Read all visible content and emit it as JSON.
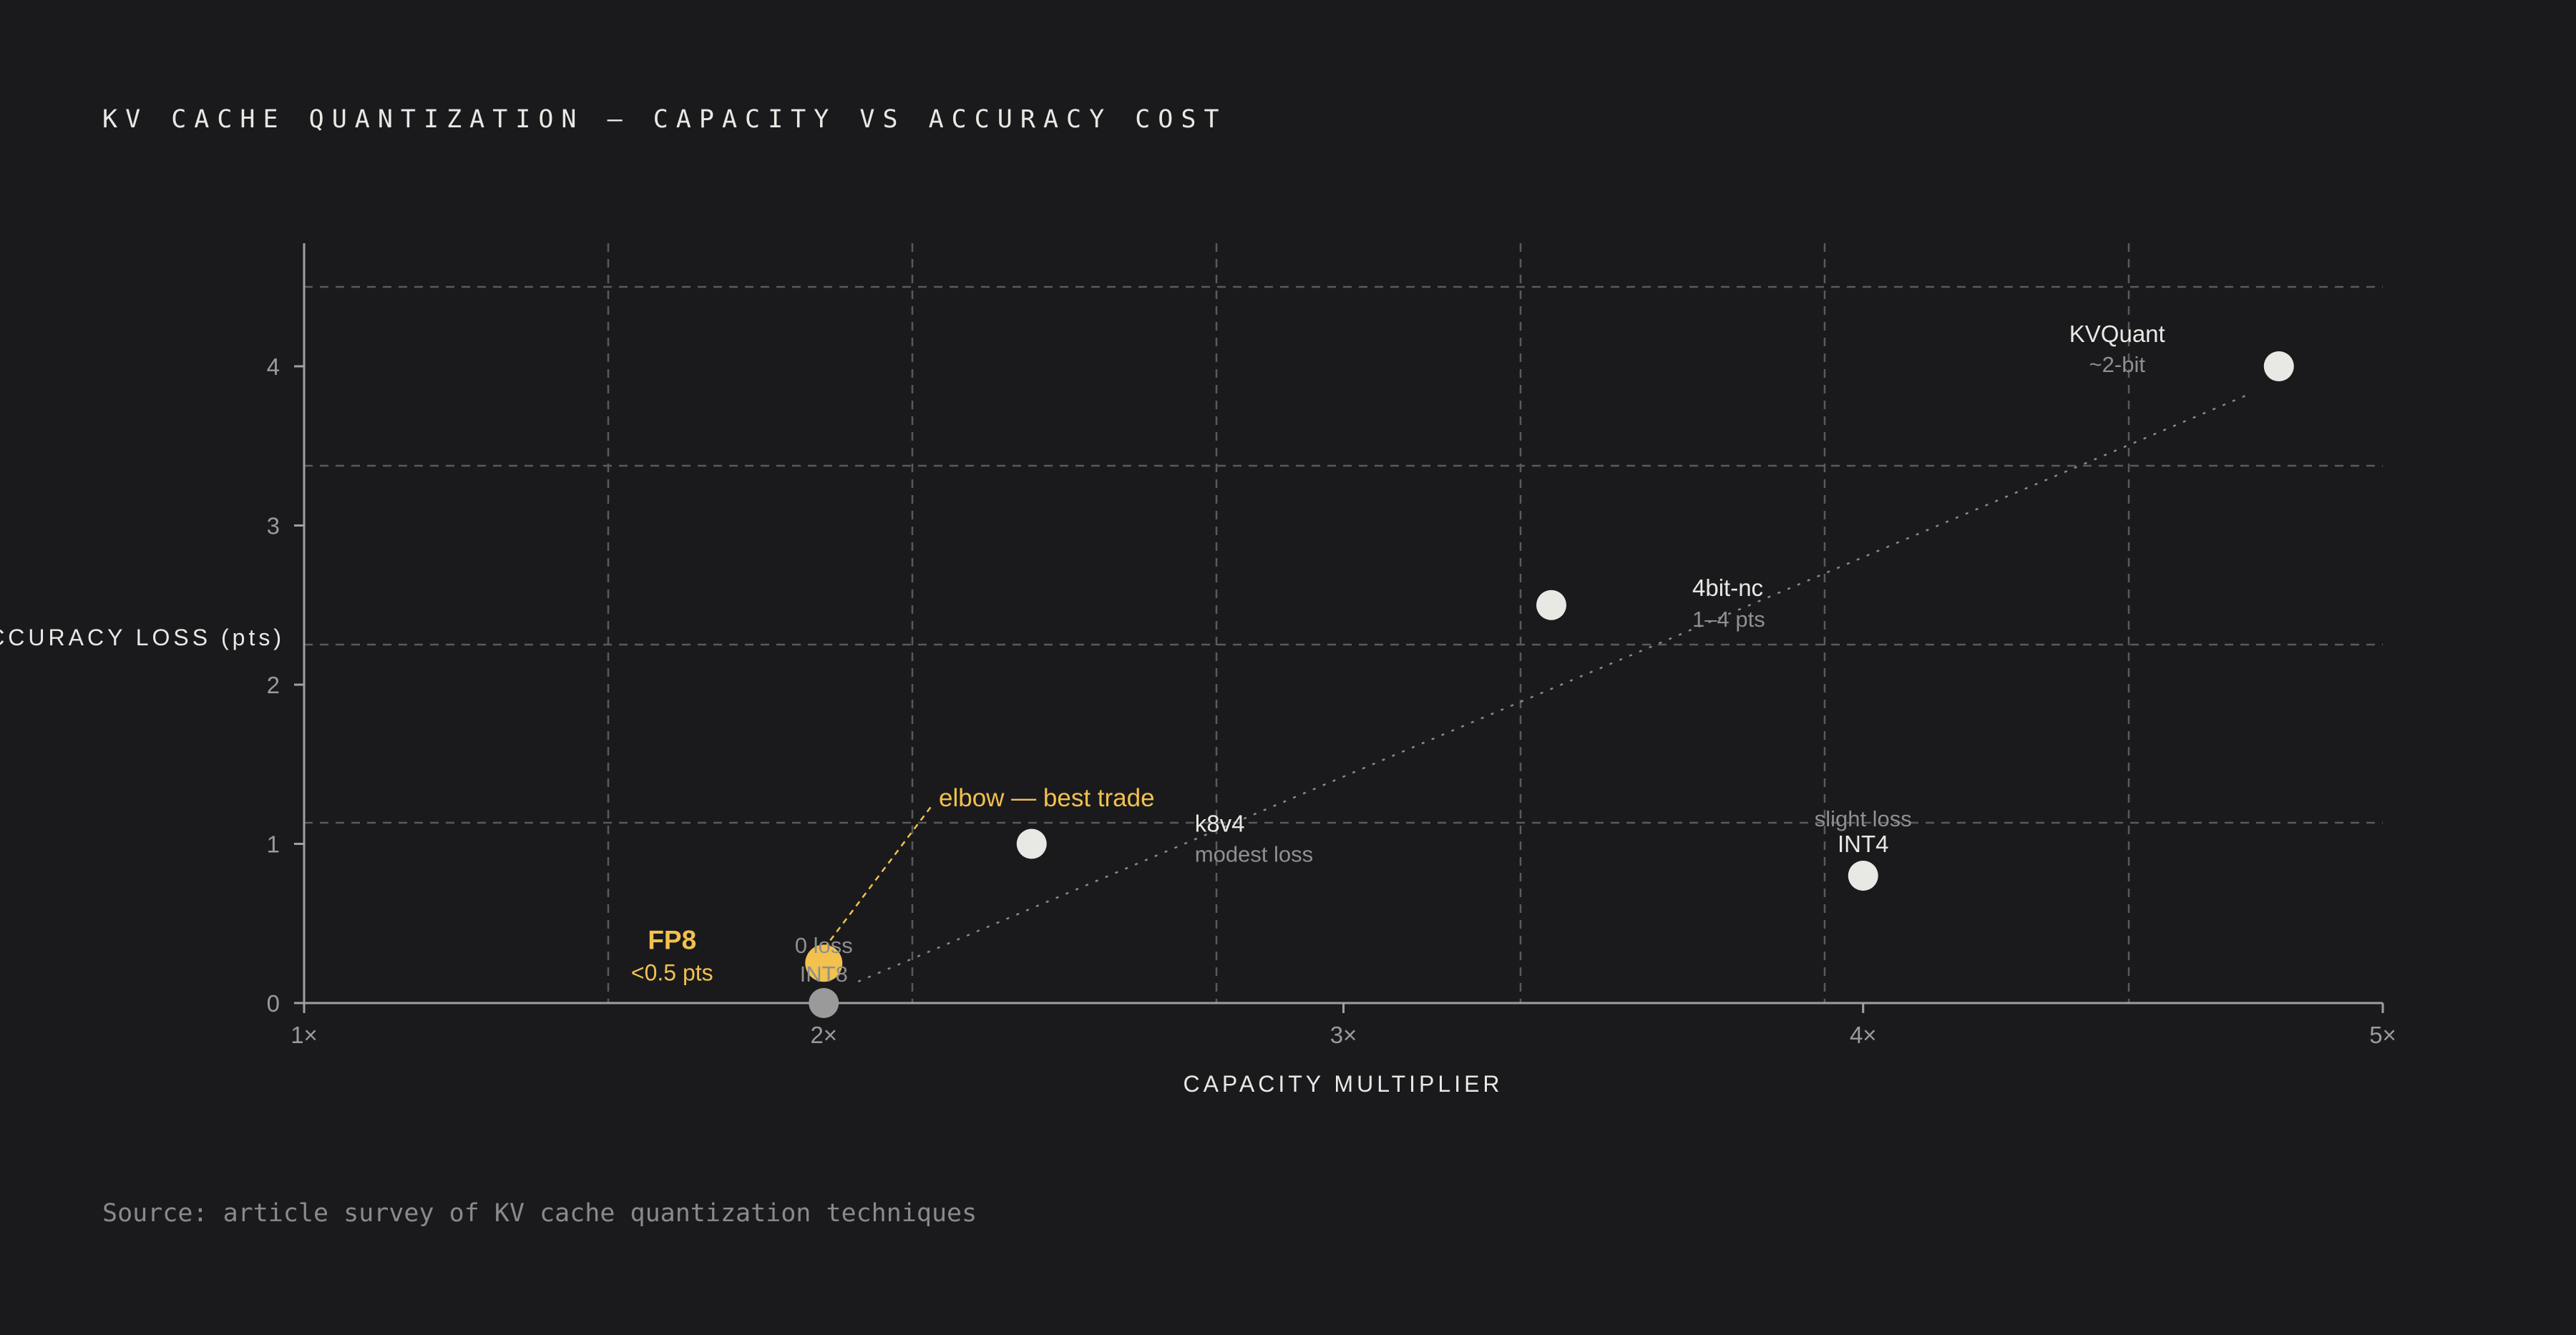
{
  "chart_data": {
    "type": "scatter",
    "title": "KV CACHE QUANTIZATION — CAPACITY VS ACCURACY COST",
    "xlabel": "CAPACITY MULTIPLIER",
    "ylabel": "ACCURACY LOSS (pts)",
    "xlim": [
      1,
      5
    ],
    "ylim": [
      0,
      4.8
    ],
    "x_ticks": [
      {
        "value": 1,
        "label": "1×"
      },
      {
        "value": 2,
        "label": "2×"
      },
      {
        "value": 3,
        "label": "3×"
      },
      {
        "value": 4,
        "label": "4×"
      },
      {
        "value": 5,
        "label": "5×"
      }
    ],
    "y_ticks": [
      {
        "value": 0,
        "label": "0"
      },
      {
        "value": 1,
        "label": "1"
      },
      {
        "value": 2,
        "label": "2"
      },
      {
        "value": 3,
        "label": "3"
      },
      {
        "value": 4,
        "label": "4"
      }
    ],
    "grid": true,
    "points": [
      {
        "name": "FP8",
        "sublabel": "<0.5 pts",
        "x": 2.0,
        "y": 0.25,
        "highlight": true
      },
      {
        "name": "INT8",
        "sublabel": "0 loss",
        "x": 2.0,
        "y": 0.0,
        "highlight": false
      },
      {
        "name": "",
        "sublabel": "",
        "x": 2.4,
        "y": 1.0,
        "highlight": false
      },
      {
        "name": "k8v4",
        "sublabel": "modest loss",
        "x": 2.4,
        "y": 1.0,
        "highlight": false
      },
      {
        "name": "4bit-nc",
        "sublabel": "1–4 pts",
        "x": 3.4,
        "y": 2.5,
        "highlight": false
      },
      {
        "name": "INT4",
        "sublabel": "slight loss",
        "x": 4.0,
        "y": 0.8,
        "highlight": false
      },
      {
        "name": "KVQuant",
        "sublabel": "~2-bit",
        "x": 4.8,
        "y": 4.0,
        "highlight": false
      }
    ],
    "trend_line": {
      "from": [
        2.0,
        0.0
      ],
      "to": [
        4.8,
        4.0
      ]
    },
    "annotation": {
      "text": "elbow — best trade",
      "x": 2.0,
      "y": 0.25
    }
  },
  "source": "Source: article survey of KV cache quantization techniques",
  "colors": {
    "background": "#1a1a1d",
    "highlight": "#f2c14e",
    "point": "#e8e8e4",
    "grid": "#5a5a5a"
  }
}
